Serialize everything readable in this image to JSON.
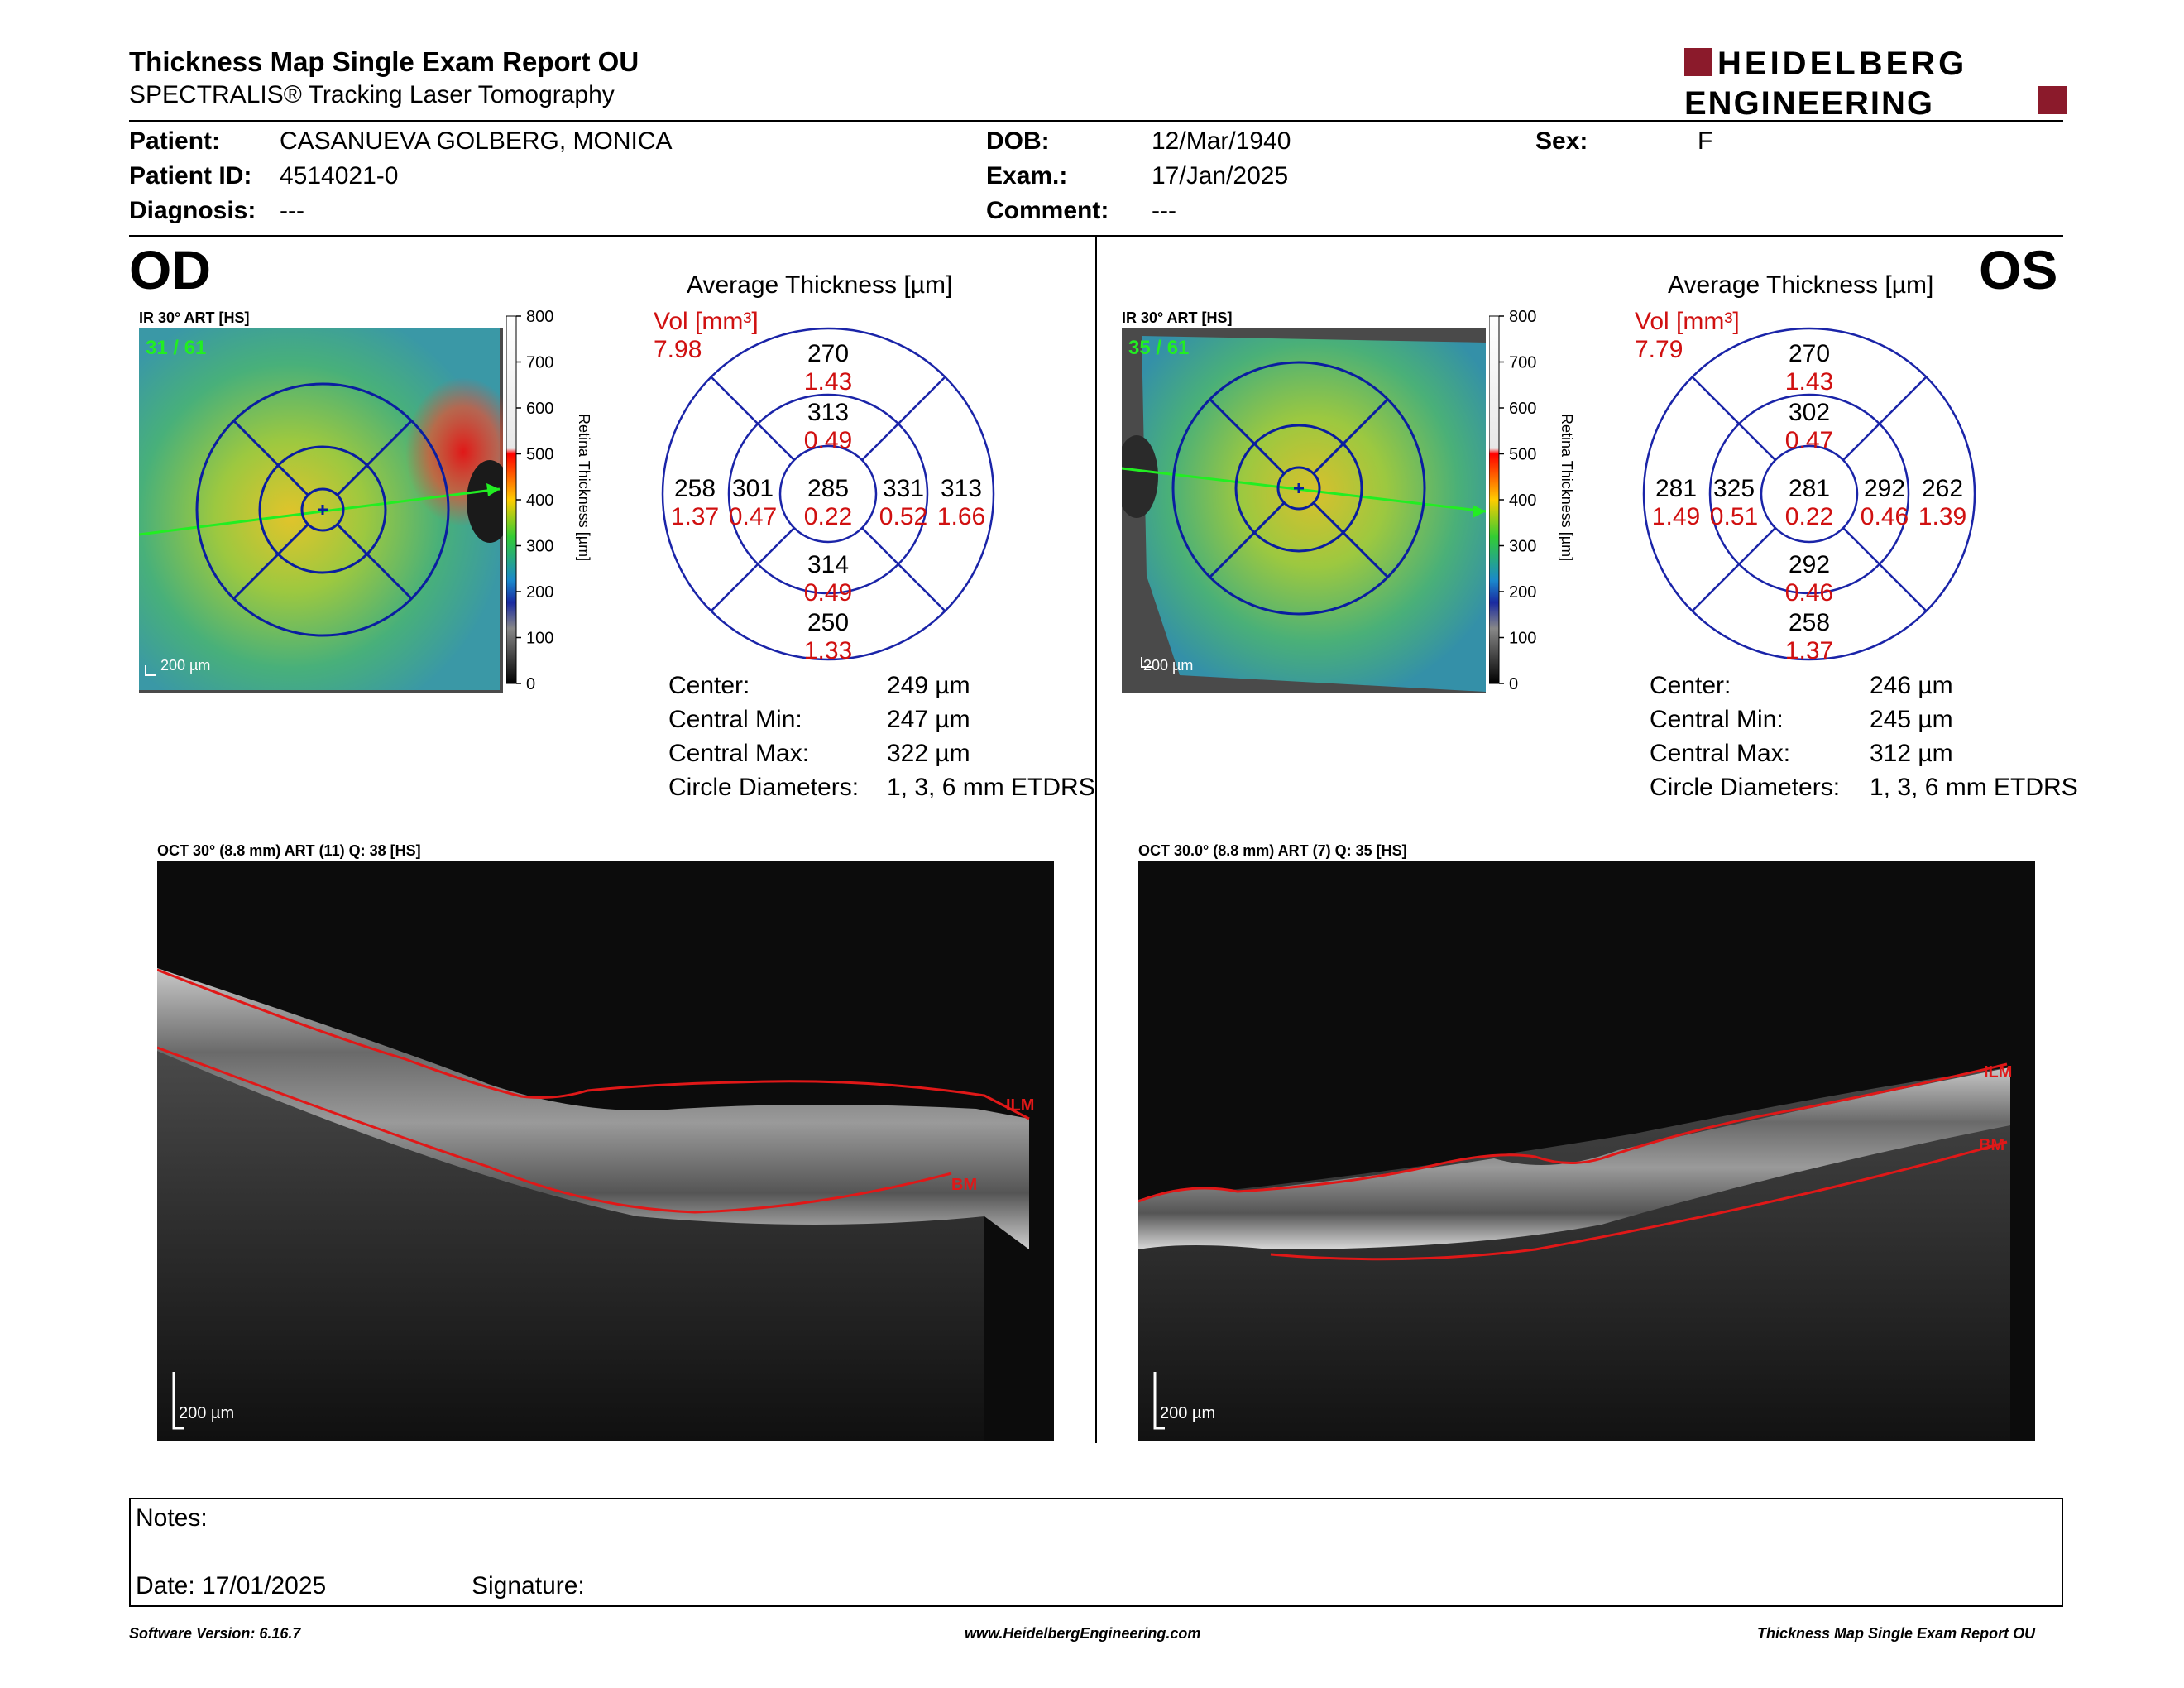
{
  "header": {
    "title": "Thickness Map Single Exam Report OU",
    "subtitle": "SPECTRALIS® Tracking Laser Tomography",
    "logo_line1": "HEIDELBERG",
    "logo_line2": "ENGINEERING",
    "brand_color": "#8b1a2b"
  },
  "patient": {
    "patient_label": "Patient:",
    "patient_value": "CASANUEVA GOLBERG, MONICA",
    "id_label": "Patient ID:",
    "id_value": "4514021-0",
    "diagnosis_label": "Diagnosis:",
    "diagnosis_value": "---",
    "dob_label": "DOB:",
    "dob_value": "12/Mar/1940",
    "exam_label": "Exam.:",
    "exam_value": "17/Jan/2025",
    "comment_label": "Comment:",
    "comment_value": "---",
    "sex_label": "Sex:",
    "sex_value": "F"
  },
  "od": {
    "eye": "OD",
    "map_title": "IR 30° ART [HS]",
    "map_counter": "31 / 61",
    "map_scale": "200 µm",
    "avg_title": "Average Thickness [µm]",
    "vol_label": "Vol [mm³]",
    "vol_value": "7.98",
    "grid": {
      "outer_sup": {
        "t": "270",
        "v": "1.43"
      },
      "inner_sup": {
        "t": "313",
        "v": "0.49"
      },
      "outer_temp": {
        "t": "258",
        "v": "1.37"
      },
      "inner_temp": {
        "t": "301",
        "v": "0.47"
      },
      "center": {
        "t": "285",
        "v": "0.22"
      },
      "inner_nas": {
        "t": "331",
        "v": "0.52"
      },
      "outer_nas": {
        "t": "313",
        "v": "1.66"
      },
      "inner_inf": {
        "t": "314",
        "v": "0.49"
      },
      "outer_inf": {
        "t": "250",
        "v": "1.33"
      }
    },
    "stats": [
      {
        "label": "Center:",
        "value": "249 µm"
      },
      {
        "label": "Central Min:",
        "value": "247 µm"
      },
      {
        "label": "Central Max:",
        "value": "322 µm"
      },
      {
        "label": "Circle Diameters:",
        "value": "1, 3, 6 mm ETDRS"
      }
    ],
    "oct_title": "OCT 30° (8.8 mm) ART (11) Q: 38 [HS]",
    "oct_scale": "200 µm",
    "ilm": "ILM",
    "bm": "BM"
  },
  "os": {
    "eye": "OS",
    "map_title": "IR 30° ART [HS]",
    "map_counter": "35 / 61",
    "map_scale": "200 µm",
    "avg_title": "Average Thickness [µm]",
    "vol_label": "Vol [mm³]",
    "vol_value": "7.79",
    "grid": {
      "outer_sup": {
        "t": "270",
        "v": "1.43"
      },
      "inner_sup": {
        "t": "302",
        "v": "0.47"
      },
      "outer_temp": {
        "t": "281",
        "v": "1.49"
      },
      "inner_temp": {
        "t": "325",
        "v": "0.51"
      },
      "center": {
        "t": "281",
        "v": "0.22"
      },
      "inner_nas": {
        "t": "292",
        "v": "0.46"
      },
      "outer_nas": {
        "t": "262",
        "v": "1.39"
      },
      "inner_inf": {
        "t": "292",
        "v": "0.46"
      },
      "outer_inf": {
        "t": "258",
        "v": "1.37"
      }
    },
    "stats": [
      {
        "label": "Center:",
        "value": "246 µm"
      },
      {
        "label": "Central Min:",
        "value": "245 µm"
      },
      {
        "label": "Central Max:",
        "value": "312 µm"
      },
      {
        "label": "Circle Diameters:",
        "value": "1, 3, 6 mm ETDRS"
      }
    ],
    "oct_title": "OCT 30.0° (8.8 mm) ART (7) Q: 35 [HS]",
    "oct_scale": "200 µm",
    "ilm": "ILM",
    "bm": "BM"
  },
  "colorbar": {
    "ticks": [
      "800",
      "700",
      "600",
      "500",
      "400",
      "300",
      "200",
      "100",
      "0"
    ],
    "label": "Retina Thickness [µm]"
  },
  "notes": {
    "notes_label": "Notes:",
    "date_label": "Date: 17/01/2025",
    "signature_label": "Signature:"
  },
  "footer": {
    "left": "Software Version: 6.16.7",
    "center": "www.HeidelbergEngineering.com",
    "right": "Thickness Map Single Exam Report OU"
  }
}
